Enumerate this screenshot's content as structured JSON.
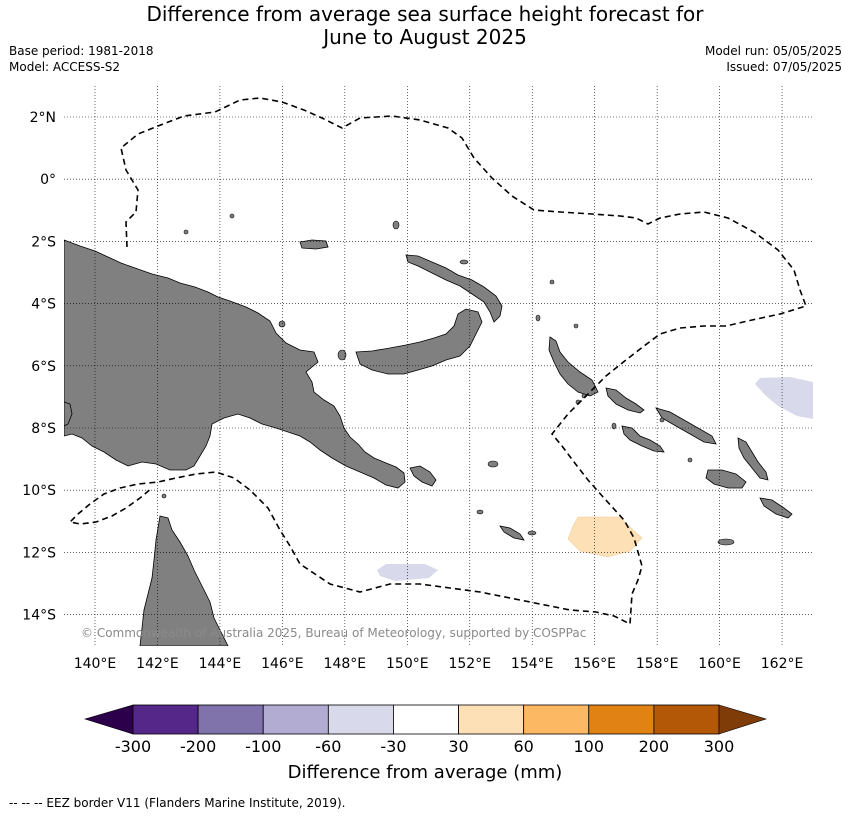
{
  "header": {
    "title_line1": "Difference from average sea surface height forecast for",
    "title_line2": "June to August 2025",
    "base_period": "Base period: 1981-2018",
    "model": "Model: ACCESS-S2",
    "model_run": "Model run: 05/05/2025",
    "issued": "Issued: 07/05/2025"
  },
  "map": {
    "lat_labels": [
      "2°N",
      "0°",
      "2°S",
      "4°S",
      "6°S",
      "8°S",
      "10°S",
      "12°S",
      "14°S"
    ],
    "lon_labels": [
      "140°E",
      "142°E",
      "144°E",
      "146°E",
      "148°E",
      "150°E",
      "152°E",
      "154°E",
      "156°E",
      "158°E",
      "160°E",
      "162°E"
    ],
    "copyright": "© Commonwealth of Australia 2025, Bureau of Meteorology, supported by COSPPac",
    "land_color": "#808080",
    "ocean_color": "#ffffff"
  },
  "colorbar": {
    "title": "Difference from average (mm)",
    "tick_labels": [
      "-300",
      "-200",
      "-100",
      "-60",
      "-30",
      "30",
      "60",
      "100",
      "200",
      "300"
    ],
    "colors": [
      "#2d004b",
      "#542788",
      "#8073ac",
      "#b2abd2",
      "#d8daeb",
      "#ffffff",
      "#fee0b6",
      "#fdb863",
      "#e08214",
      "#b35806",
      "#7f3b08"
    ]
  },
  "footnote": "--  --  -- EEZ border V11 (Flanders Marine Institute, 2019)."
}
